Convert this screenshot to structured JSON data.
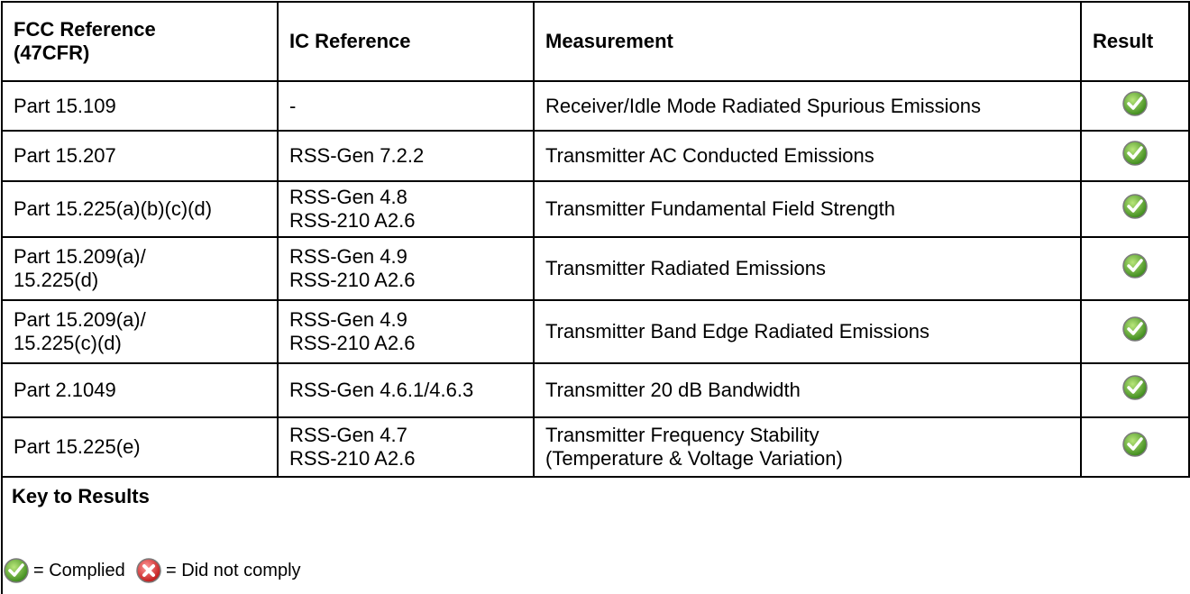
{
  "table": {
    "header": [
      [
        "FCC Reference",
        "(47CFR)"
      ],
      [
        "IC Reference"
      ],
      [
        "Measurement"
      ],
      [
        "Result"
      ]
    ],
    "rows": [
      [
        [
          "Part 15.109"
        ],
        [
          "-"
        ],
        [
          "Receiver/Idle Mode Radiated Spurious Emissions"
        ]
      ],
      [
        [
          "Part 15.207"
        ],
        [
          "RSS-Gen 7.2.2"
        ],
        [
          "Transmitter AC Conducted Emissions"
        ]
      ],
      [
        [
          "Part 15.225(a)(b)(c)(d)"
        ],
        [
          "RSS-Gen 4.8",
          "RSS-210 A2.6"
        ],
        [
          "Transmitter Fundamental Field Strength"
        ]
      ],
      [
        [
          "Part 15.209(a)/",
          "15.225(d)"
        ],
        [
          "RSS-Gen 4.9",
          "RSS-210 A2.6"
        ],
        [
          "Transmitter Radiated Emissions"
        ]
      ],
      [
        [
          "Part 15.209(a)/",
          "15.225(c)(d)"
        ],
        [
          "RSS-Gen 4.9",
          "RSS-210 A2.6"
        ],
        [
          "Transmitter Band Edge Radiated Emissions"
        ]
      ],
      [
        [
          "Part 2.1049"
        ],
        [
          "RSS-Gen 4.6.1/4.6.3"
        ],
        [
          "Transmitter 20 dB Bandwidth"
        ]
      ],
      [
        [
          "Part 15.225(e)"
        ],
        [
          "RSS-Gen 4.7",
          "RSS-210 A2.6"
        ],
        [
          "Transmitter Frequency Stability",
          "(Temperature & Voltage Variation)"
        ]
      ]
    ]
  },
  "key": {
    "title": "Key to Results",
    "complied": "= Complied",
    "not_complied": "= Did not comply"
  }
}
